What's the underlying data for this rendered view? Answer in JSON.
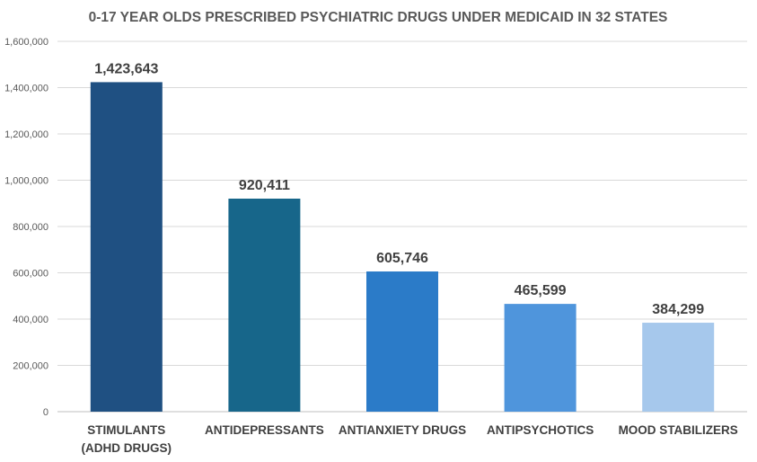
{
  "chart_data": {
    "type": "bar",
    "title": "0-17 YEAR OLDS PRESCRIBED PSYCHIATRIC DRUGS UNDER MEDICAID IN 32 STATES",
    "categories": [
      [
        "STIMULANTS",
        "(ADHD DRUGS)"
      ],
      [
        "ANTIDEPRESSANTS"
      ],
      [
        "ANTIANXIETY DRUGS"
      ],
      [
        "ANTIPSYCHOTICS"
      ],
      [
        "MOOD STABILIZERS"
      ]
    ],
    "values": [
      1423643,
      920411,
      605746,
      465599,
      384299
    ],
    "data_labels": [
      "1,423,643",
      "920,411",
      "605,746",
      "465,599",
      "384,299"
    ],
    "colors": [
      "#1f5082",
      "#17668a",
      "#2b7bc8",
      "#4f95dc",
      "#a6c8ec"
    ],
    "ylim": [
      0,
      1600000
    ],
    "yticks": [
      0,
      200000,
      400000,
      600000,
      800000,
      1000000,
      1200000,
      1400000,
      1600000
    ],
    "ytick_labels": [
      "0",
      "200,000",
      "400,000",
      "600,000",
      "800,000",
      "1,000,000",
      "1,200,000",
      "1,400,000",
      "1,600,000"
    ],
    "xlabel": "",
    "ylabel": "",
    "grid": true,
    "legend": "none"
  }
}
